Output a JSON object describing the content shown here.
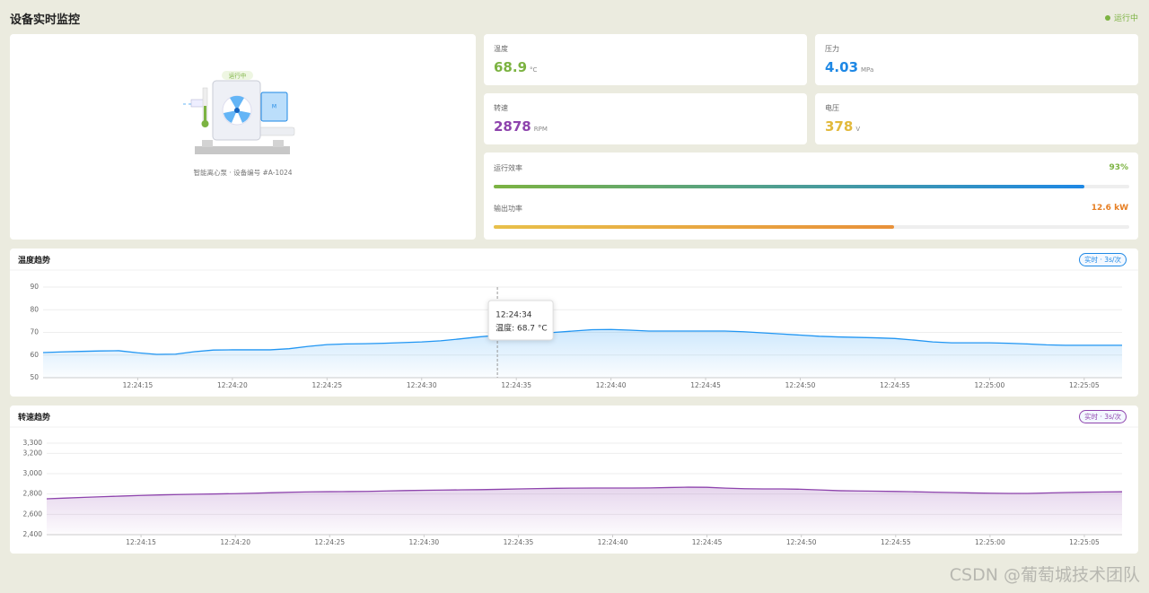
{
  "header": {
    "title": "设备实时监控",
    "status": "运行中"
  },
  "device": {
    "badge": "运行中",
    "caption": "智能离心泵 · 设备编号 #A-1024"
  },
  "metrics": [
    {
      "label": "温度",
      "value": 68.9,
      "unit": "°C",
      "color": "#7cb342"
    },
    {
      "label": "压力",
      "value": 4.03,
      "unit": "MPa",
      "color": "#1e88e5"
    },
    {
      "label": "转速",
      "value": 2878,
      "unit": "RPM",
      "color": "#8e44ad"
    },
    {
      "label": "电压",
      "value": 378,
      "unit": "V",
      "color": "#e2b93b"
    }
  ],
  "progress": [
    {
      "label": "运行效率",
      "value": 93,
      "value_label": "93%",
      "range": [
        0,
        100
      ],
      "color": "#7cb342",
      "colors": [
        "#7cb342",
        "#1e88e5"
      ]
    },
    {
      "label": "输出功率",
      "value": 12.6,
      "unit": "kW",
      "range": [
        0,
        20
      ],
      "color": "#e67e22",
      "colors": [
        "#e8c04a",
        "#e8913a"
      ]
    }
  ],
  "chart_data": [
    {
      "type": "line",
      "title": "温度趋势",
      "badge": "实时 · 3s/次",
      "badge_color": "#1e88e5",
      "categories": [
        null,
        null,
        null,
        null,
        null,
        "12:24:15",
        null,
        null,
        null,
        null,
        "12:24:20",
        null,
        null,
        null,
        null,
        "12:24:25",
        null,
        null,
        null,
        null,
        "12:24:30",
        null,
        null,
        null,
        null,
        "12:24:35",
        null,
        null,
        null,
        null,
        "12:24:40",
        null,
        null,
        null,
        null,
        "12:24:45",
        null,
        null,
        null,
        null,
        "12:24:50",
        null,
        null,
        null,
        null,
        "12:24:55",
        null,
        null,
        null,
        null,
        "12:25:00",
        null,
        null,
        null,
        null,
        "12:25:05",
        null,
        null
      ],
      "series": [
        {
          "color": "#2196f3",
          "values": [
            61.1,
            61.4,
            61.6,
            61.8,
            61.9,
            61.0,
            60.3,
            60.4,
            61.5,
            62.2,
            62.3,
            62.3,
            62.3,
            62.8,
            63.8,
            64.6,
            64.9,
            65.0,
            65.2,
            65.5,
            65.8,
            66.3,
            67.1,
            68.0,
            68.7,
            69.2,
            69.6,
            70.0,
            70.6,
            71.2,
            71.3,
            71.0,
            70.6,
            70.6,
            70.6,
            70.6,
            70.6,
            70.3,
            69.8,
            69.3,
            68.8,
            68.3,
            68.0,
            67.8,
            67.6,
            67.3,
            66.6,
            65.8,
            65.4,
            65.4,
            65.4,
            65.2,
            64.9,
            64.5,
            64.3,
            64.3,
            64.3,
            64.3
          ]
        }
      ],
      "ylim": [
        50,
        90
      ],
      "yticks": [
        50,
        60,
        70,
        80,
        90
      ],
      "grid": true,
      "tooltip": {
        "title": "12:24:34",
        "text": "温度: 68.7 °C"
      }
    },
    {
      "type": "line",
      "title": "转速趋势",
      "badge": "实时 · 3s/次",
      "badge_color": "#8e44ad",
      "categories": [
        null,
        null,
        null,
        null,
        null,
        "12:24:15",
        null,
        null,
        null,
        null,
        "12:24:20",
        null,
        null,
        null,
        null,
        "12:24:25",
        null,
        null,
        null,
        null,
        "12:24:30",
        null,
        null,
        null,
        null,
        "12:24:35",
        null,
        null,
        null,
        null,
        "12:24:40",
        null,
        null,
        null,
        null,
        "12:24:45",
        null,
        null,
        null,
        null,
        "12:24:50",
        null,
        null,
        null,
        null,
        "12:24:55",
        null,
        null,
        null,
        null,
        "12:25:00",
        null,
        null,
        null,
        null,
        "12:25:05",
        null,
        null
      ],
      "series": [
        {
          "color": "#8e44ad",
          "values": [
            2753,
            2760,
            2767,
            2774,
            2780,
            2786,
            2791,
            2795,
            2798,
            2801,
            2804,
            2808,
            2813,
            2818,
            2821,
            2823,
            2824,
            2826,
            2830,
            2834,
            2837,
            2839,
            2841,
            2843,
            2846,
            2850,
            2853,
            2856,
            2858,
            2859,
            2859,
            2859,
            2860,
            2864,
            2867,
            2866,
            2858,
            2852,
            2850,
            2850,
            2847,
            2840,
            2833,
            2830,
            2828,
            2825,
            2822,
            2818,
            2815,
            2811,
            2808,
            2806,
            2806,
            2810,
            2815,
            2818,
            2820,
            2822
          ]
        }
      ],
      "ylim": [
        2400,
        3300
      ],
      "yticks": [
        {
          "value": 2400,
          "label": "2,400"
        },
        {
          "value": 2600,
          "label": "2,600"
        },
        {
          "value": 2800,
          "label": "2,800"
        },
        {
          "value": 3000,
          "label": "3,000"
        },
        {
          "value": 3200,
          "label": "3,200"
        },
        {
          "value": 3300,
          "label": "3,300"
        }
      ],
      "grid": true
    }
  ]
}
